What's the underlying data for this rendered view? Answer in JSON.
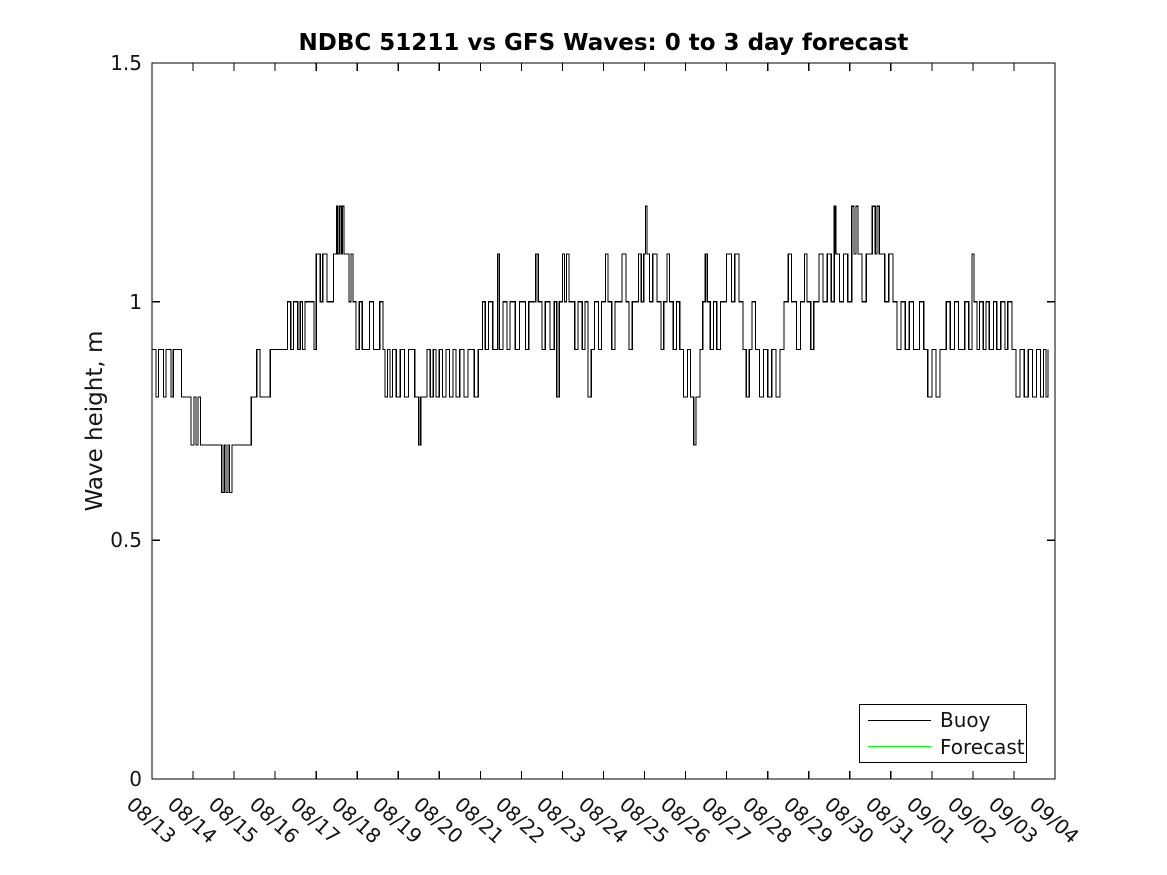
{
  "chart_data": {
    "type": "line",
    "line_style": "step",
    "title": "NDBC 51211 vs GFS Waves: 0 to 3 day forecast",
    "xlabel": "",
    "ylabel": "Wave height, m",
    "x_unit": "days since 08/13",
    "xlim": [
      0,
      22
    ],
    "ylim": [
      0,
      1.5
    ],
    "grid": false,
    "legend_position": "bottom-right",
    "xtick_labels": [
      "08/13",
      "08/14",
      "08/15",
      "08/16",
      "08/17",
      "08/18",
      "08/19",
      "08/20",
      "08/21",
      "08/22",
      "08/23",
      "08/24",
      "08/25",
      "08/26",
      "08/27",
      "08/28",
      "08/29",
      "08/30",
      "08/31",
      "09/01",
      "09/02",
      "09/03",
      "09/04"
    ],
    "xtick_rotation_deg": 42,
    "ytick_labels": [
      "0",
      "0.5",
      "1",
      "1.5"
    ],
    "ytick_values": [
      0,
      0.5,
      1,
      1.5
    ],
    "series": [
      {
        "name": "Buoy",
        "color": "#000000",
        "points": [
          [
            0.0,
            0.9
          ],
          [
            0.1,
            0.8
          ],
          [
            0.16,
            0.9
          ],
          [
            0.28,
            0.8
          ],
          [
            0.34,
            0.9
          ],
          [
            0.46,
            0.8
          ],
          [
            0.52,
            0.9
          ],
          [
            0.72,
            0.8
          ],
          [
            0.95,
            0.7
          ],
          [
            1.02,
            0.8
          ],
          [
            1.07,
            0.7
          ],
          [
            1.12,
            0.8
          ],
          [
            1.18,
            0.7
          ],
          [
            1.7,
            0.6
          ],
          [
            1.76,
            0.7
          ],
          [
            1.8,
            0.6
          ],
          [
            1.85,
            0.7
          ],
          [
            1.89,
            0.6
          ],
          [
            1.95,
            0.7
          ],
          [
            2.42,
            0.8
          ],
          [
            2.55,
            0.9
          ],
          [
            2.63,
            0.8
          ],
          [
            2.88,
            0.9
          ],
          [
            3.3,
            1.0
          ],
          [
            3.38,
            0.9
          ],
          [
            3.45,
            1.0
          ],
          [
            3.55,
            0.9
          ],
          [
            3.61,
            1.0
          ],
          [
            3.67,
            0.9
          ],
          [
            3.73,
            1.0
          ],
          [
            3.95,
            0.9
          ],
          [
            4.0,
            1.1
          ],
          [
            4.1,
            1.0
          ],
          [
            4.16,
            1.1
          ],
          [
            4.26,
            1.0
          ],
          [
            4.42,
            1.1
          ],
          [
            4.5,
            1.2
          ],
          [
            4.53,
            1.1
          ],
          [
            4.57,
            1.2
          ],
          [
            4.61,
            1.1
          ],
          [
            4.64,
            1.2
          ],
          [
            4.68,
            1.1
          ],
          [
            4.8,
            1.0
          ],
          [
            4.85,
            1.1
          ],
          [
            4.9,
            1.0
          ],
          [
            4.97,
            0.9
          ],
          [
            5.05,
            1.0
          ],
          [
            5.12,
            0.9
          ],
          [
            5.3,
            1.0
          ],
          [
            5.4,
            0.9
          ],
          [
            5.55,
            1.0
          ],
          [
            5.63,
            0.9
          ],
          [
            5.68,
            0.8
          ],
          [
            5.74,
            0.9
          ],
          [
            5.8,
            0.8
          ],
          [
            5.86,
            0.9
          ],
          [
            5.95,
            0.8
          ],
          [
            6.05,
            0.9
          ],
          [
            6.15,
            0.8
          ],
          [
            6.25,
            0.9
          ],
          [
            6.4,
            0.8
          ],
          [
            6.5,
            0.7
          ],
          [
            6.55,
            0.8
          ],
          [
            6.7,
            0.9
          ],
          [
            6.78,
            0.8
          ],
          [
            6.85,
            0.9
          ],
          [
            6.92,
            0.8
          ],
          [
            7.0,
            0.9
          ],
          [
            7.08,
            0.8
          ],
          [
            7.16,
            0.9
          ],
          [
            7.25,
            0.8
          ],
          [
            7.33,
            0.9
          ],
          [
            7.41,
            0.8
          ],
          [
            7.5,
            0.9
          ],
          [
            7.6,
            0.8
          ],
          [
            7.7,
            0.9
          ],
          [
            7.85,
            0.8
          ],
          [
            7.95,
            0.9
          ],
          [
            8.05,
            1.0
          ],
          [
            8.12,
            0.9
          ],
          [
            8.2,
            1.0
          ],
          [
            8.3,
            0.9
          ],
          [
            8.42,
            1.1
          ],
          [
            8.46,
            0.9
          ],
          [
            8.55,
            1.0
          ],
          [
            8.65,
            0.9
          ],
          [
            8.72,
            1.0
          ],
          [
            8.85,
            0.9
          ],
          [
            8.95,
            1.0
          ],
          [
            9.1,
            0.9
          ],
          [
            9.18,
            1.0
          ],
          [
            9.35,
            1.1
          ],
          [
            9.41,
            1.0
          ],
          [
            9.5,
            0.9
          ],
          [
            9.58,
            1.0
          ],
          [
            9.7,
            0.9
          ],
          [
            9.8,
            1.0
          ],
          [
            9.86,
            0.8
          ],
          [
            9.92,
            1.0
          ],
          [
            10.0,
            1.1
          ],
          [
            10.05,
            1.0
          ],
          [
            10.1,
            1.1
          ],
          [
            10.16,
            1.0
          ],
          [
            10.3,
            0.9
          ],
          [
            10.38,
            1.0
          ],
          [
            10.48,
            0.9
          ],
          [
            10.55,
            1.0
          ],
          [
            10.62,
            0.8
          ],
          [
            10.7,
            0.9
          ],
          [
            10.78,
            1.0
          ],
          [
            10.88,
            0.9
          ],
          [
            10.95,
            1.0
          ],
          [
            11.05,
            1.1
          ],
          [
            11.11,
            1.0
          ],
          [
            11.2,
            0.9
          ],
          [
            11.28,
            1.0
          ],
          [
            11.45,
            1.1
          ],
          [
            11.55,
            1.0
          ],
          [
            11.62,
            0.9
          ],
          [
            11.7,
            1.0
          ],
          [
            11.85,
            1.1
          ],
          [
            11.92,
            1.0
          ],
          [
            11.98,
            1.1
          ],
          [
            12.02,
            1.2
          ],
          [
            12.06,
            1.1
          ],
          [
            12.12,
            1.0
          ],
          [
            12.2,
            1.1
          ],
          [
            12.3,
            1.0
          ],
          [
            12.4,
            0.9
          ],
          [
            12.47,
            1.0
          ],
          [
            12.55,
            1.1
          ],
          [
            12.61,
            1.0
          ],
          [
            12.7,
            0.9
          ],
          [
            12.78,
            1.0
          ],
          [
            12.86,
            0.9
          ],
          [
            12.95,
            0.8
          ],
          [
            13.05,
            0.9
          ],
          [
            13.12,
            0.8
          ],
          [
            13.2,
            0.7
          ],
          [
            13.25,
            0.8
          ],
          [
            13.35,
            0.9
          ],
          [
            13.42,
            1.0
          ],
          [
            13.48,
            1.1
          ],
          [
            13.53,
            1.0
          ],
          [
            13.6,
            0.9
          ],
          [
            13.68,
            1.0
          ],
          [
            13.76,
            0.9
          ],
          [
            13.85,
            1.0
          ],
          [
            14.0,
            1.1
          ],
          [
            14.12,
            1.0
          ],
          [
            14.2,
            1.1
          ],
          [
            14.3,
            1.0
          ],
          [
            14.4,
            0.9
          ],
          [
            14.48,
            0.8
          ],
          [
            14.55,
            0.9
          ],
          [
            14.62,
            1.0
          ],
          [
            14.7,
            0.9
          ],
          [
            14.8,
            0.8
          ],
          [
            14.9,
            0.9
          ],
          [
            15.0,
            0.8
          ],
          [
            15.1,
            0.9
          ],
          [
            15.2,
            0.8
          ],
          [
            15.3,
            0.9
          ],
          [
            15.4,
            1.0
          ],
          [
            15.5,
            1.1
          ],
          [
            15.58,
            1.0
          ],
          [
            15.7,
            0.9
          ],
          [
            15.8,
            1.0
          ],
          [
            15.9,
            1.1
          ],
          [
            15.96,
            1.0
          ],
          [
            16.05,
            0.9
          ],
          [
            16.12,
            1.0
          ],
          [
            16.25,
            1.1
          ],
          [
            16.35,
            1.0
          ],
          [
            16.45,
            1.1
          ],
          [
            16.55,
            1.0
          ],
          [
            16.62,
            1.2
          ],
          [
            16.66,
            1.1
          ],
          [
            16.75,
            1.0
          ],
          [
            16.85,
            1.1
          ],
          [
            16.95,
            1.0
          ],
          [
            17.05,
            1.2
          ],
          [
            17.1,
            1.1
          ],
          [
            17.15,
            1.2
          ],
          [
            17.2,
            1.1
          ],
          [
            17.3,
            1.0
          ],
          [
            17.4,
            1.1
          ],
          [
            17.55,
            1.2
          ],
          [
            17.62,
            1.1
          ],
          [
            17.66,
            1.2
          ],
          [
            17.72,
            1.1
          ],
          [
            17.85,
            1.0
          ],
          [
            17.95,
            1.1
          ],
          [
            18.05,
            1.0
          ],
          [
            18.15,
            0.9
          ],
          [
            18.25,
            1.0
          ],
          [
            18.35,
            0.9
          ],
          [
            18.45,
            1.0
          ],
          [
            18.55,
            0.9
          ],
          [
            18.7,
            1.0
          ],
          [
            18.8,
            0.9
          ],
          [
            18.9,
            0.8
          ],
          [
            19.0,
            0.9
          ],
          [
            19.1,
            0.8
          ],
          [
            19.2,
            0.9
          ],
          [
            19.35,
            1.0
          ],
          [
            19.45,
            0.9
          ],
          [
            19.55,
            1.0
          ],
          [
            19.65,
            0.9
          ],
          [
            19.8,
            1.0
          ],
          [
            19.9,
            0.9
          ],
          [
            19.98,
            1.1
          ],
          [
            20.03,
            1.0
          ],
          [
            20.1,
            0.9
          ],
          [
            20.16,
            1.0
          ],
          [
            20.25,
            0.9
          ],
          [
            20.32,
            1.0
          ],
          [
            20.4,
            0.9
          ],
          [
            20.5,
            1.0
          ],
          [
            20.58,
            0.9
          ],
          [
            20.68,
            1.0
          ],
          [
            20.78,
            0.9
          ],
          [
            20.85,
            1.0
          ],
          [
            20.95,
            0.9
          ],
          [
            21.05,
            0.8
          ],
          [
            21.15,
            0.9
          ],
          [
            21.25,
            0.8
          ],
          [
            21.35,
            0.9
          ],
          [
            21.45,
            0.8
          ],
          [
            21.55,
            0.9
          ],
          [
            21.65,
            0.8
          ],
          [
            21.72,
            0.9
          ],
          [
            21.78,
            0.8
          ],
          [
            21.83,
            0.9
          ]
        ]
      },
      {
        "name": "Forecast",
        "color": "#00FF00",
        "points": []
      }
    ]
  },
  "colors": {
    "axis": "#000000",
    "text": "#141414",
    "buoy_line": "#000000",
    "forecast_line": "#00FF00",
    "background": "#ffffff"
  }
}
